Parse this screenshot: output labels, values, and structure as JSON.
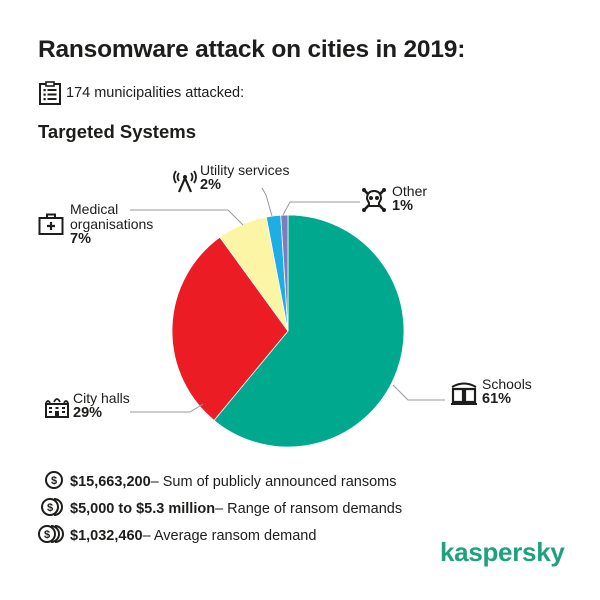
{
  "header": {
    "title": "Ransomware attack on cities in 2019:",
    "subtitle": "174 municipalities attacked:",
    "section_title": "Targeted Systems"
  },
  "chart_data": {
    "type": "pie",
    "title": "Targeted Systems",
    "start_angle_deg": 0,
    "direction": "clockwise",
    "categories": [
      "Schools",
      "City halls",
      "Medical organisations",
      "Utility services",
      "Other"
    ],
    "values": [
      61,
      29,
      7,
      2,
      1
    ],
    "labels": [
      "61%",
      "29%",
      "7%",
      "2%",
      "1%"
    ],
    "colors": [
      "#00a88e",
      "#ec1c24",
      "#fdf5a6",
      "#1eaee3",
      "#7f7bbf"
    ],
    "icons": [
      "open-book-icon",
      "building-icon",
      "medical-case-icon",
      "antenna-icon",
      "skull-icon"
    ]
  },
  "labels": {
    "utility": {
      "name": "Utility services",
      "pct": "2%"
    },
    "other": {
      "name": "Other",
      "pct": "1%"
    },
    "medical": {
      "name_line1": "Medical",
      "name_line2": "organisations",
      "pct": "7%"
    },
    "city_halls": {
      "name": "City halls",
      "pct": "29%"
    },
    "schools": {
      "name": "Schools",
      "pct": "61%"
    }
  },
  "stats": [
    {
      "value": "$15,663,200",
      "desc": " – Sum of publicly announced ransoms",
      "icon": "coin-icon"
    },
    {
      "value": "$5,000 to $5.3 million",
      "desc": " – Range of ransom demands",
      "icon": "two-coins-icon"
    },
    {
      "value": "$1,032,460",
      "desc": " – Average ransom demand",
      "icon": "three-coins-icon"
    }
  ],
  "brand": {
    "logo_text": "kaspersky",
    "color": "#1fa180"
  }
}
